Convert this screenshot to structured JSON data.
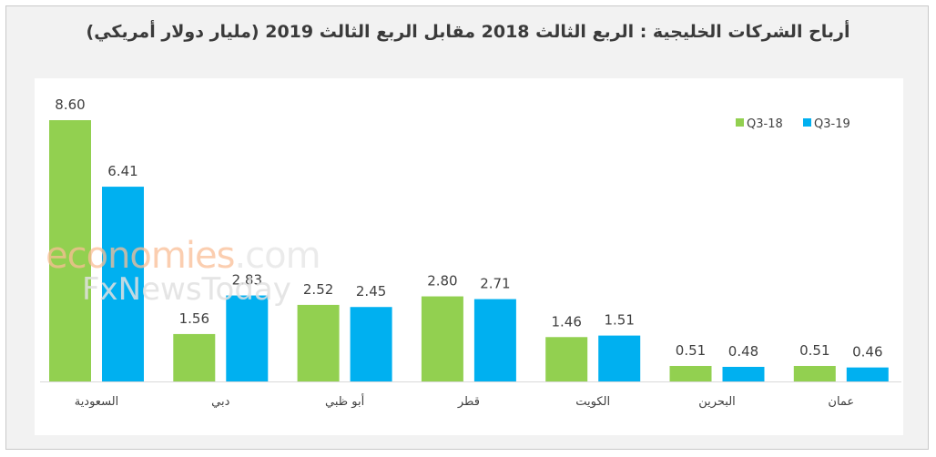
{
  "chart_data": {
    "type": "bar",
    "title": "أرباح الشركات الخليجية : الربع الثالث 2018 مقابل الربع الثالث 2019 (مليار دولار أمريكي)",
    "categories": [
      "السعودية",
      "دبي",
      "أبو ظبي",
      "قطر",
      "الكويت",
      "البحرين",
      "عمان"
    ],
    "series": [
      {
        "name": "Q3-18",
        "values": [
          8.6,
          1.56,
          2.52,
          2.8,
          1.46,
          0.51,
          0.51
        ],
        "labels": [
          "8.60",
          "1.56",
          "2.52",
          "2.80",
          "1.46",
          "0.51",
          "0.51"
        ]
      },
      {
        "name": "Q3-19",
        "values": [
          6.41,
          2.83,
          2.45,
          2.71,
          1.51,
          0.48,
          0.46
        ],
        "labels": [
          "6.41",
          "2.83",
          "2.45",
          "2.71",
          "1.51",
          "0.48",
          "0.46"
        ]
      }
    ],
    "ylim": [
      0,
      8.6
    ],
    "grid": false,
    "legend": "top-right",
    "colors": {
      "Q3-18": "#92d050",
      "Q3-19": "#00b0f0"
    }
  },
  "watermark": {
    "line1_a": "economies",
    "line1_b": ".com",
    "line2": "FxNewsToday"
  }
}
